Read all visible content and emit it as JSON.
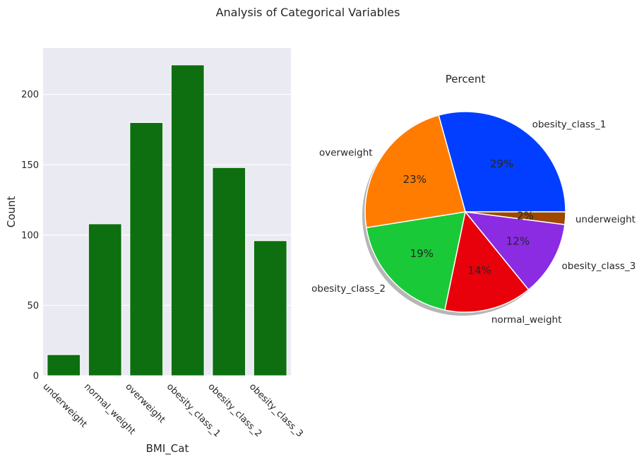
{
  "figure": {
    "title": "Analysis of Categorical Variables"
  },
  "chart_data": [
    {
      "type": "bar",
      "categories": [
        "underweight",
        "normal_weight",
        "overweight",
        "obesity_class_1",
        "obesity_class_2",
        "obesity_class_3"
      ],
      "values": [
        15,
        108,
        180,
        221,
        148,
        96
      ],
      "xlabel": "BMI_Cat",
      "ylabel": "Count",
      "ylim": [
        0,
        233
      ],
      "yticks": [
        0,
        50,
        100,
        150,
        200
      ],
      "bar_color": "#0e6f10",
      "background": "#eaeaf2",
      "grid": true
    },
    {
      "type": "pie",
      "title": "Percent",
      "labels": [
        "obesity_class_1",
        "overweight",
        "obesity_class_2",
        "normal_weight",
        "obesity_class_3",
        "underweight"
      ],
      "values": [
        29,
        23,
        19,
        14,
        12,
        2
      ],
      "percent_labels": [
        "29%",
        "23%",
        "19%",
        "14%",
        "12%",
        "2%"
      ],
      "colors": [
        "#023eff",
        "#ff7c00",
        "#1ac938",
        "#e8000b",
        "#8b2be2",
        "#9f4800"
      ],
      "shadow": true
    }
  ]
}
